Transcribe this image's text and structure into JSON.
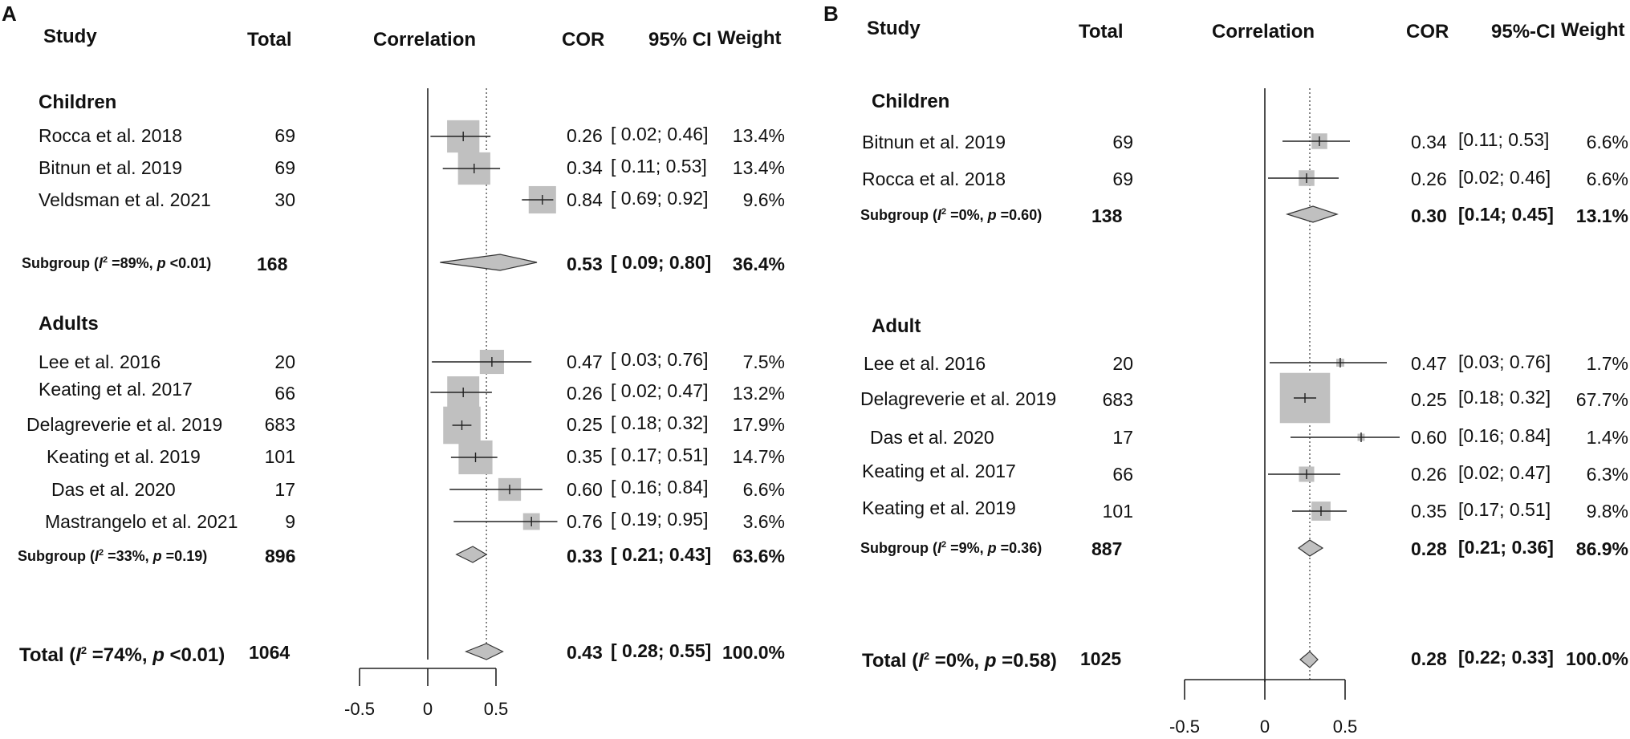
{
  "panels": [
    {
      "letter": "A",
      "headers": {
        "study": "Study",
        "total": "Total",
        "correlation": "Correlation",
        "cor": "COR",
        "ci": "95% CI",
        "weight": "Weight"
      },
      "groups": [
        {
          "name": "Children",
          "studies": [
            {
              "study": "Rocca et al. 2018",
              "total": "69",
              "cor": "0.26",
              "ci": "[ 0.02; 0.46]",
              "weight": "13.4%",
              "est": 0.26,
              "lo": 0.02,
              "hi": 0.46,
              "w": 13.4
            },
            {
              "study": "Bitnun et al. 2019",
              "total": "69",
              "cor": "0.34",
              "ci": "[ 0.11; 0.53]",
              "weight": "13.4%",
              "est": 0.34,
              "lo": 0.11,
              "hi": 0.53,
              "w": 13.4
            },
            {
              "study": "Veldsman et al. 2021",
              "total": "30",
              "cor": "0.84",
              "ci": "[ 0.69; 0.92]",
              "weight": "9.6%",
              "est": 0.84,
              "lo": 0.69,
              "hi": 0.92,
              "w": 9.6
            }
          ],
          "subgroup": {
            "label_pre": "Subgroup (",
            "i2_sym": "I",
            "i2_sup": "2",
            "i2_text": " =89%, ",
            "p_sym": "p",
            "p_text": " <0.01)",
            "total": "168",
            "cor": "0.53",
            "ci": "[ 0.09; 0.80]",
            "weight": "36.4%",
            "est": 0.53,
            "lo": 0.09,
            "hi": 0.8
          }
        },
        {
          "name": "Adults",
          "studies": [
            {
              "study": "Lee et al. 2016",
              "total": "20",
              "cor": "0.47",
              "ci": "[ 0.03; 0.76]",
              "weight": "7.5%",
              "est": 0.47,
              "lo": 0.03,
              "hi": 0.76,
              "w": 7.5
            },
            {
              "study": "Keating et al. 2017",
              "total": "66",
              "cor": "0.26",
              "ci": "[ 0.02; 0.47]",
              "weight": "13.2%",
              "est": 0.26,
              "lo": 0.02,
              "hi": 0.47,
              "w": 13.2
            },
            {
              "study": "Delagreverie et al. 2019",
              "total": "683",
              "cor": "0.25",
              "ci": "[ 0.18; 0.32]",
              "weight": "17.9%",
              "est": 0.25,
              "lo": 0.18,
              "hi": 0.32,
              "w": 17.9
            },
            {
              "study": "Keating et al. 2019",
              "total": "101",
              "cor": "0.35",
              "ci": "[ 0.17; 0.51]",
              "weight": "14.7%",
              "est": 0.35,
              "lo": 0.17,
              "hi": 0.51,
              "w": 14.7
            },
            {
              "study": "Das et al. 2020",
              "total": "17",
              "cor": "0.60",
              "ci": "[ 0.16; 0.84]",
              "weight": "6.6%",
              "est": 0.6,
              "lo": 0.16,
              "hi": 0.84,
              "w": 6.6
            },
            {
              "study": "Mastrangelo et al. 2021",
              "total": "9",
              "cor": "0.76",
              "ci": "[ 0.19; 0.95]",
              "weight": "3.6%",
              "est": 0.76,
              "lo": 0.19,
              "hi": 0.95,
              "w": 3.6
            }
          ],
          "subgroup": {
            "label_pre": "Subgroup (",
            "i2_sym": "I",
            "i2_sup": "2",
            "i2_text": " =33%, ",
            "p_sym": "p",
            "p_text": " =0.19)",
            "total": "896",
            "cor": "0.33",
            "ci": "[ 0.21; 0.43]",
            "weight": "63.6%",
            "est": 0.33,
            "lo": 0.21,
            "hi": 0.43
          }
        }
      ],
      "overall": {
        "label_pre": "Total (",
        "i2_sym": "I",
        "i2_sup": "2",
        "i2_text": " =74%, ",
        "p_sym": "p",
        "p_text": " <0.01)",
        "total": "1064",
        "cor": "0.43",
        "ci": "[ 0.28; 0.55]",
        "weight": "100.0%",
        "est": 0.43,
        "lo": 0.28,
        "hi": 0.55
      },
      "axis": {
        "ticks": [
          "-0.5",
          "0",
          "0.5"
        ],
        "xlim": [
          -0.5,
          0.5
        ],
        "ref_line": 0
      }
    },
    {
      "letter": "B",
      "headers": {
        "study": "Study",
        "total": "Total",
        "correlation": "Correlation",
        "cor": "COR",
        "ci": "95%-CI",
        "weight": "Weight"
      },
      "groups": [
        {
          "name": "Children",
          "studies": [
            {
              "study": "Bitnun et al. 2019",
              "total": "69",
              "cor": "0.34",
              "ci": "[0.11; 0.53]",
              "weight": "6.6%",
              "est": 0.34,
              "lo": 0.11,
              "hi": 0.53,
              "w": 6.6
            },
            {
              "study": "Rocca et al. 2018",
              "total": "69",
              "cor": "0.26",
              "ci": "[0.02; 0.46]",
              "weight": "6.6%",
              "est": 0.26,
              "lo": 0.02,
              "hi": 0.46,
              "w": 6.6
            }
          ],
          "subgroup": {
            "label_pre": "Subgroup (",
            "i2_sym": "I",
            "i2_sup": "2",
            "i2_text": " =0%, ",
            "p_sym": "p",
            "p_text": " =0.60)",
            "total": "138",
            "cor": "0.30",
            "ci": "[0.14; 0.45]",
            "weight": "13.1%",
            "est": 0.3,
            "lo": 0.14,
            "hi": 0.45
          }
        },
        {
          "name": "Adult",
          "studies": [
            {
              "study": "Lee et al. 2016",
              "total": "20",
              "cor": "0.47",
              "ci": "[0.03; 0.76]",
              "weight": "1.7%",
              "est": 0.47,
              "lo": 0.03,
              "hi": 0.76,
              "w": 1.7
            },
            {
              "study": "Delagreverie et al. 2019",
              "total": "683",
              "cor": "0.25",
              "ci": "[0.18; 0.32]",
              "weight": "67.7%",
              "est": 0.25,
              "lo": 0.18,
              "hi": 0.32,
              "w": 67.7
            },
            {
              "study": "Das et al. 2020",
              "total": "17",
              "cor": "0.60",
              "ci": "[0.16; 0.84]",
              "weight": "1.4%",
              "est": 0.6,
              "lo": 0.16,
              "hi": 0.84,
              "w": 1.4
            },
            {
              "study": "Keating et al. 2017",
              "total": "66",
              "cor": "0.26",
              "ci": "[0.02; 0.47]",
              "weight": "6.3%",
              "est": 0.26,
              "lo": 0.02,
              "hi": 0.47,
              "w": 6.3
            },
            {
              "study": "Keating et al. 2019",
              "total": "101",
              "cor": "0.35",
              "ci": "[0.17; 0.51]",
              "weight": "9.8%",
              "est": 0.35,
              "lo": 0.17,
              "hi": 0.51,
              "w": 9.8
            }
          ],
          "subgroup": {
            "label_pre": "Subgroup (",
            "i2_sym": "I",
            "i2_sup": "2",
            "i2_text": " =9%, ",
            "p_sym": "p",
            "p_text": " =0.36)",
            "total": "887",
            "cor": "0.28",
            "ci": "[0.21; 0.36]",
            "weight": "86.9%",
            "est": 0.28,
            "lo": 0.21,
            "hi": 0.36
          }
        }
      ],
      "overall": {
        "label_pre": "Total (",
        "i2_sym": "I",
        "i2_sup": "2",
        "i2_text": " =0%, ",
        "p_sym": "p",
        "p_text": " =0.58)",
        "total": "1025",
        "cor": "0.28",
        "ci": "[0.22; 0.33]",
        "weight": "100.0%",
        "est": 0.28,
        "lo": 0.22,
        "hi": 0.33
      },
      "axis": {
        "ticks": [
          "-0.5",
          "0",
          "0.5"
        ],
        "xlim": [
          -0.5,
          0.5
        ],
        "ref_line": 0
      }
    }
  ],
  "chart_data": [
    {
      "type": "forest",
      "panel": "A",
      "xlabel": "Correlation",
      "xlim": [
        -0.5,
        0.5
      ],
      "series": [
        {
          "name": "Children",
          "studies": [
            "Rocca et al. 2018",
            "Bitnun et al. 2019",
            "Veldsman et al. 2021"
          ],
          "cor": [
            0.26,
            0.34,
            0.84
          ],
          "ci_low": [
            0.02,
            0.11,
            0.69
          ],
          "ci_high": [
            0.46,
            0.53,
            0.92
          ],
          "weight_pct": [
            13.4,
            13.4,
            9.6
          ],
          "pooled": {
            "cor": 0.53,
            "ci": [
              0.09,
              0.8
            ],
            "weight_pct": 36.4,
            "i2_pct": 89,
            "p": "<0.01"
          }
        },
        {
          "name": "Adults",
          "studies": [
            "Lee et al. 2016",
            "Keating et al. 2017",
            "Delagreverie et al. 2019",
            "Keating et al. 2019",
            "Das et al. 2020",
            "Mastrangelo et al. 2021"
          ],
          "cor": [
            0.47,
            0.26,
            0.25,
            0.35,
            0.6,
            0.76
          ],
          "ci_low": [
            0.03,
            0.02,
            0.18,
            0.17,
            0.16,
            0.19
          ],
          "ci_high": [
            0.76,
            0.47,
            0.32,
            0.51,
            0.84,
            0.95
          ],
          "weight_pct": [
            7.5,
            13.2,
            17.9,
            14.7,
            6.6,
            3.6
          ],
          "pooled": {
            "cor": 0.33,
            "ci": [
              0.21,
              0.43
            ],
            "weight_pct": 63.6,
            "i2_pct": 33,
            "p": "0.19"
          }
        }
      ],
      "overall": {
        "cor": 0.43,
        "ci": [
          0.28,
          0.55
        ],
        "weight_pct": 100.0,
        "i2_pct": 74,
        "p": "<0.01",
        "total": 1064
      }
    },
    {
      "type": "forest",
      "panel": "B",
      "xlabel": "Correlation",
      "xlim": [
        -0.5,
        0.5
      ],
      "series": [
        {
          "name": "Children",
          "studies": [
            "Bitnun et al. 2019",
            "Rocca et al. 2018"
          ],
          "cor": [
            0.34,
            0.26
          ],
          "ci_low": [
            0.11,
            0.02
          ],
          "ci_high": [
            0.53,
            0.46
          ],
          "weight_pct": [
            6.6,
            6.6
          ],
          "pooled": {
            "cor": 0.3,
            "ci": [
              0.14,
              0.45
            ],
            "weight_pct": 13.1,
            "i2_pct": 0,
            "p": "0.60"
          }
        },
        {
          "name": "Adult",
          "studies": [
            "Lee et al. 2016",
            "Delagreverie et al. 2019",
            "Das et al. 2020",
            "Keating et al. 2017",
            "Keating et al. 2019"
          ],
          "cor": [
            0.47,
            0.25,
            0.6,
            0.26,
            0.35
          ],
          "ci_low": [
            0.03,
            0.18,
            0.16,
            0.02,
            0.17
          ],
          "ci_high": [
            0.76,
            0.32,
            0.84,
            0.47,
            0.51
          ],
          "weight_pct": [
            1.7,
            67.7,
            1.4,
            6.3,
            9.8
          ],
          "pooled": {
            "cor": 0.28,
            "ci": [
              0.21,
              0.36
            ],
            "weight_pct": 86.9,
            "i2_pct": 9,
            "p": "0.36"
          }
        }
      ],
      "overall": {
        "cor": 0.28,
        "ci": [
          0.22,
          0.33
        ],
        "weight_pct": 100.0,
        "i2_pct": 0,
        "p": "0.58",
        "total": 1025
      }
    }
  ]
}
